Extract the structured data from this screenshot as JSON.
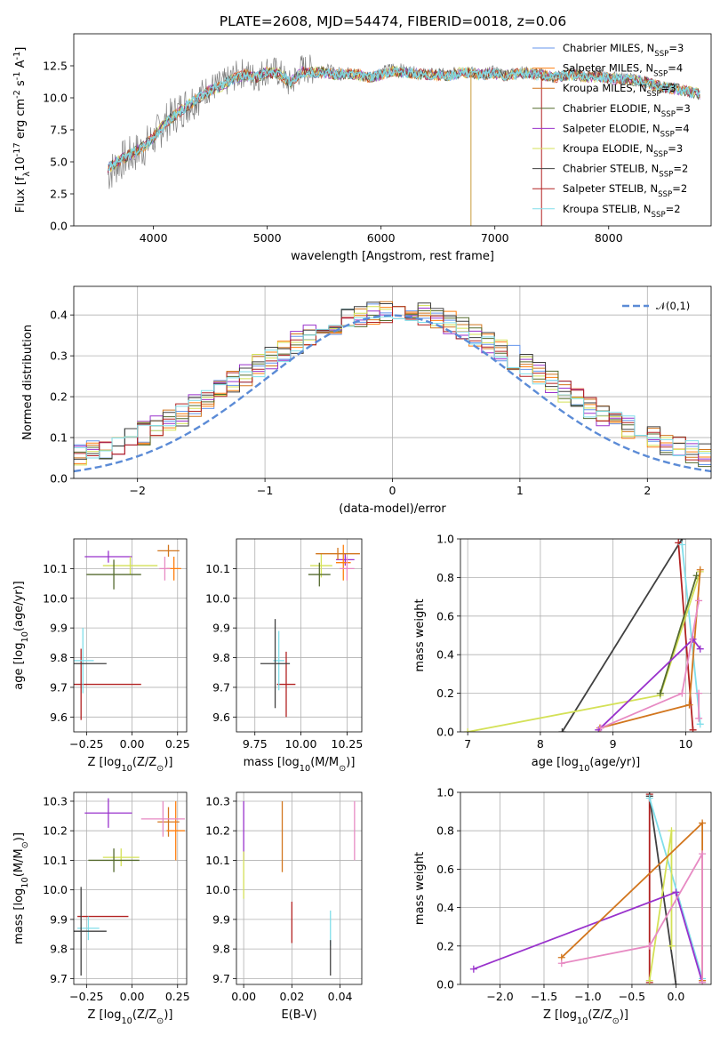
{
  "chart_data": [
    {
      "id": "spectrum",
      "type": "line",
      "title": "PLATE=2608, MJD=54474, FIBERID=0018, z=0.06",
      "xlabel": "wavelength [Angstrom, rest frame]",
      "ylabel": "Flux [f$_λ$10$^{-17}$ erg cm$^{-2}$ s$^{-1}$ A$^{-1}$]",
      "xlim": [
        3300,
        8900
      ],
      "ylim": [
        0,
        15
      ],
      "xticks": [
        "4000",
        "5000",
        "6000",
        "7000",
        "8000"
      ],
      "yticks": [
        "0.0",
        "2.5",
        "5.0",
        "7.5",
        "10.0",
        "12.5"
      ],
      "grid": false,
      "legend_position": "top-right",
      "data_series": {
        "name": "data",
        "color": "#808080",
        "x": [
          3600,
          3700,
          3800,
          3900,
          4000,
          4100,
          4200,
          4300,
          4400,
          4500,
          4600,
          4700,
          4800,
          4900,
          5000,
          5100,
          5200,
          5300,
          5400,
          5500,
          5600,
          5700,
          5800,
          5900,
          6000,
          6100,
          6200,
          6300,
          6400,
          6500,
          6600,
          6700,
          6800,
          6900,
          7000,
          7100,
          7200,
          7300,
          7400,
          7500,
          7600,
          7700,
          7800,
          7900,
          8000,
          8100,
          8200,
          8300,
          8400,
          8500,
          8600,
          8700,
          8800
        ],
        "y": [
          4.0,
          5.0,
          5.5,
          6.0,
          6.8,
          8.0,
          8.8,
          9.5,
          10.2,
          10.8,
          11.0,
          11.6,
          12.0,
          11.5,
          12.2,
          12.0,
          11.0,
          12.3,
          12.2,
          12.3,
          12.0,
          12.0,
          11.9,
          11.5,
          12.0,
          12.4,
          12.2,
          12.0,
          11.9,
          11.9,
          11.8,
          12.2,
          12.0,
          11.9,
          12.1,
          11.8,
          12.1,
          12.0,
          11.9,
          11.6,
          11.8,
          12.0,
          11.7,
          11.9,
          11.6,
          11.6,
          11.5,
          11.4,
          11.0,
          10.8,
          10.7,
          10.5,
          10.3
        ]
      },
      "models": {
        "x": [
          3600,
          3700,
          3800,
          3900,
          4000,
          4100,
          4200,
          4300,
          4400,
          4500,
          4600,
          4700,
          4800,
          4900,
          5000,
          5100,
          5200,
          5300,
          5400,
          5500,
          5600,
          5700,
          5800,
          5900,
          6000,
          6100,
          6200,
          6300,
          6400,
          6500,
          6600,
          6700,
          6800,
          6900,
          7000,
          7100,
          7200,
          7300,
          7400,
          7500,
          7600,
          7700,
          7800,
          7900,
          8000,
          8100,
          8200,
          8300,
          8400,
          8500,
          8600,
          8700,
          8800
        ],
        "y": [
          4.5,
          5.1,
          5.6,
          6.1,
          6.9,
          8.0,
          8.7,
          9.4,
          10.0,
          10.6,
          10.9,
          11.5,
          11.8,
          11.6,
          12.0,
          11.9,
          11.2,
          12.0,
          12.0,
          12.0,
          11.8,
          11.9,
          11.8,
          11.6,
          11.8,
          12.1,
          12.0,
          11.9,
          11.8,
          11.8,
          11.7,
          12.0,
          11.9,
          11.8,
          11.9,
          11.7,
          11.9,
          11.9,
          11.8,
          11.6,
          11.7,
          11.8,
          11.6,
          11.7,
          11.5,
          11.5,
          11.4,
          11.3,
          11.0,
          10.8,
          10.7,
          10.5,
          10.3
        ]
      },
      "series": [
        {
          "name": "Chabrier MILES, N$_{SSP}$=3",
          "color": "#6495ed"
        },
        {
          "name": "Salpeter MILES, N$_{SSP}$=4",
          "color": "#ff7f0e"
        },
        {
          "name": "Kroupa MILES, N$_{SSP}$=3",
          "color": "#d2761e"
        },
        {
          "name": "Chabrier ELODIE, N$_{SSP}$=3",
          "color": "#556b2f"
        },
        {
          "name": "Salpeter ELODIE, N$_{SSP}$=4",
          "color": "#9932cc"
        },
        {
          "name": "Kroupa ELODIE, N$_{SSP}$=3",
          "color": "#d4e157"
        },
        {
          "name": "Chabrier STELIB, N$_{SSP}$=2",
          "color": "#404040"
        },
        {
          "name": "Salpeter STELIB, N$_{SSP}$=2",
          "color": "#b22222"
        },
        {
          "name": "Kroupa STELIB, N$_{SSP}$=2",
          "color": "#80deea"
        }
      ],
      "cyan_overlay_color": "#80d8e0"
    },
    {
      "id": "residuals",
      "type": "line",
      "xlabel": "(data-model)/error",
      "ylabel": "Normed distribution",
      "xlim": [
        -2.5,
        2.5
      ],
      "ylim": [
        0,
        0.47
      ],
      "xticks": [
        "−2",
        "−1",
        "0",
        "1",
        "2"
      ],
      "yticks": [
        "0.0",
        "0.1",
        "0.2",
        "0.3",
        "0.4"
      ],
      "grid": true,
      "legend_position": "top-right",
      "legend_label": "$\\mathcal{N}(0,1)$",
      "normal_color": "#5b8bd6",
      "hist_colors": [
        "#6495ed",
        "#ff7f0e",
        "#d2761e",
        "#556b2f",
        "#9932cc",
        "#d4e157",
        "#404040",
        "#b22222",
        "#80deea"
      ],
      "bin_edges_count": 50
    },
    {
      "id": "age_vs_Z",
      "type": "scatter",
      "xlabel": "Z [log$_{10}$(Z/Z$_\\odot$)]",
      "ylabel": "age  [log$_{10}$(age/yr)]",
      "xlim": [
        -0.32,
        0.3
      ],
      "ylim": [
        9.55,
        10.2
      ],
      "xticks": [
        "−0.25",
        "0.00",
        "0.25"
      ],
      "yticks": [
        "9.6",
        "9.7",
        "9.8",
        "9.9",
        "10.0",
        "10.1"
      ],
      "grid": true,
      "points": [
        {
          "x": -0.13,
          "y": 10.14,
          "xerr": 0.13,
          "yerr": 0.02,
          "color": "#9932cc"
        },
        {
          "x": -0.01,
          "y": 10.11,
          "xerr": 0.15,
          "yerr": 0.03,
          "color": "#d4e157"
        },
        {
          "x": 0.23,
          "y": 10.1,
          "xerr": 0.04,
          "yerr": 0.04,
          "color": "#ff7f0e"
        },
        {
          "x": 0.18,
          "y": 10.1,
          "xerr": 0.03,
          "yerr": 0.04,
          "color": "#e78ac3"
        },
        {
          "x": 0.2,
          "y": 10.16,
          "xerr": 0.06,
          "yerr": 0.02,
          "color": "#d2761e"
        },
        {
          "x": -0.1,
          "y": 10.08,
          "xerr": 0.15,
          "yerr": 0.05,
          "color": "#556b2f"
        },
        {
          "x": -0.28,
          "y": 9.71,
          "xerr": 0.33,
          "yerr": 0.12,
          "color": "#b22222"
        },
        {
          "x": -0.27,
          "y": 9.79,
          "xerr": 0.06,
          "yerr": 0.11,
          "color": "#80deea"
        },
        {
          "x": -0.28,
          "y": 9.78,
          "xerr": 0.14,
          "yerr": 0.0,
          "color": "#404040"
        }
      ]
    },
    {
      "id": "age_vs_mass",
      "type": "scatter",
      "xlabel": "mass [log$_{10}$(M/M$_\\odot$)]",
      "ylabel": "",
      "xlim": [
        9.65,
        10.33
      ],
      "ylim": [
        9.55,
        10.2
      ],
      "xticks": [
        "9.75",
        "10.00",
        "10.25"
      ],
      "yticks": [
        "9.6",
        "9.7",
        "9.8",
        "9.9",
        "10.0",
        "10.1"
      ],
      "grid": true,
      "points": [
        {
          "x": 10.24,
          "y": 10.13,
          "xerr": 0.05,
          "yerr": 0.02,
          "color": "#9932cc"
        },
        {
          "x": 10.11,
          "y": 10.11,
          "xerr": 0.06,
          "yerr": 0.04,
          "color": "#d4e157"
        },
        {
          "x": 10.23,
          "y": 10.12,
          "xerr": 0.04,
          "yerr": 0.06,
          "color": "#ff7f0e"
        },
        {
          "x": 10.2,
          "y": 10.15,
          "xerr": 0.12,
          "yerr": 0.02,
          "color": "#d2761e"
        },
        {
          "x": 10.25,
          "y": 10.1,
          "xerr": 0.04,
          "yerr": 0.04,
          "color": "#e78ac3"
        },
        {
          "x": 10.1,
          "y": 10.08,
          "xerr": 0.06,
          "yerr": 0.04,
          "color": "#556b2f"
        },
        {
          "x": 9.92,
          "y": 9.71,
          "xerr": 0.05,
          "yerr": 0.11,
          "color": "#b22222"
        },
        {
          "x": 9.88,
          "y": 9.79,
          "xerr": 0.03,
          "yerr": 0.1,
          "color": "#80deea"
        },
        {
          "x": 9.86,
          "y": 9.78,
          "xerr": 0.08,
          "yerr": 0.15,
          "color": "#404040"
        }
      ]
    },
    {
      "id": "weight_vs_age",
      "type": "line",
      "xlabel": "age  [log$_{10}$(age/yr)]",
      "ylabel": "mass weight",
      "xlim": [
        6.9,
        10.35
      ],
      "ylim": [
        0,
        1.0
      ],
      "xticks": [
        "7",
        "8",
        "9",
        "10"
      ],
      "yticks": [
        "0.0",
        "0.2",
        "0.4",
        "0.6",
        "0.8",
        "1.0"
      ],
      "grid": true,
      "series": [
        {
          "color": "#404040",
          "x": [
            8.3,
            9.95
          ],
          "y": [
            0.0,
            1.0
          ]
        },
        {
          "color": "#b22222",
          "x": [
            9.9,
            10.1
          ],
          "y": [
            0.98,
            0.01
          ]
        },
        {
          "color": "#80deea",
          "x": [
            9.95,
            10.2
          ],
          "y": [
            0.97,
            0.04
          ]
        },
        {
          "color": "#d4e157",
          "x": [
            7.0,
            9.65,
            10.2
          ],
          "y": [
            0.0,
            0.19,
            0.83
          ]
        },
        {
          "color": "#556b2f",
          "x": [
            9.65,
            10.15
          ],
          "y": [
            0.2,
            0.81
          ]
        },
        {
          "color": "#d2761e",
          "x": [
            8.82,
            10.05,
            10.2
          ],
          "y": [
            0.02,
            0.14,
            0.84
          ]
        },
        {
          "color": "#9932cc",
          "x": [
            8.8,
            10.1,
            10.2
          ],
          "y": [
            0.01,
            0.48,
            0.43
          ]
        },
        {
          "color": "#e78ac3",
          "x": [
            8.83,
            9.95,
            10.18
          ],
          "y": [
            0.02,
            0.2,
            0.68
          ]
        },
        {
          "color": "#e78ac3",
          "x": [
            10.18,
            10.18
          ],
          "y": [
            0.07,
            0.2
          ]
        }
      ]
    },
    {
      "id": "mass_vs_Z",
      "type": "scatter",
      "xlabel": "Z [log$_{10}$(Z/Z$_\\odot$)]",
      "ylabel": "mass [log$_{10}$(M/M$_\\odot$)]",
      "xlim": [
        -0.32,
        0.3
      ],
      "ylim": [
        9.68,
        10.33
      ],
      "xticks": [
        "−0.25",
        "0.00",
        "0.25"
      ],
      "yticks": [
        "9.7",
        "9.8",
        "9.9",
        "10.0",
        "10.1",
        "10.2",
        "10.3"
      ],
      "grid": true,
      "points": [
        {
          "x": -0.13,
          "y": 10.26,
          "xerr": 0.13,
          "yerr": 0.05,
          "color": "#9932cc"
        },
        {
          "x": -0.06,
          "y": 10.11,
          "xerr": 0.1,
          "yerr": 0.03,
          "color": "#d4e157"
        },
        {
          "x": 0.2,
          "y": 10.23,
          "xerr": 0.06,
          "yerr": 0.05,
          "color": "#d2761e"
        },
        {
          "x": 0.24,
          "y": 10.2,
          "xerr": 0.05,
          "yerr": 0.1,
          "color": "#ff7f0e"
        },
        {
          "x": 0.17,
          "y": 10.24,
          "xerr": 0.12,
          "yerr": 0.06,
          "color": "#e78ac3"
        },
        {
          "x": -0.1,
          "y": 10.1,
          "xerr": 0.14,
          "yerr": 0.04,
          "color": "#556b2f"
        },
        {
          "x": -0.16,
          "y": 9.91,
          "xerr": 0.14,
          "yerr": 0.0,
          "color": "#b22222"
        },
        {
          "x": -0.24,
          "y": 9.87,
          "xerr": 0.06,
          "yerr": 0.04,
          "color": "#80deea"
        },
        {
          "x": -0.28,
          "y": 9.86,
          "xerr": 0.14,
          "yerr": 0.15,
          "color": "#404040"
        }
      ]
    },
    {
      "id": "mass_vs_ebv",
      "type": "scatter",
      "xlabel": "E(B-V)",
      "ylabel": "",
      "xlim": [
        -0.003,
        0.049
      ],
      "ylim": [
        9.68,
        10.33
      ],
      "xticks": [
        "0.00",
        "0.02",
        "0.04"
      ],
      "yticks": [
        "9.7",
        "9.8",
        "9.9",
        "10.0",
        "10.1",
        "10.2",
        "10.3"
      ],
      "grid": true,
      "points": [
        {
          "x": 0.0,
          "y": 10.2,
          "xerr": 0.0,
          "yerr": 0.1,
          "color": "#9932cc"
        },
        {
          "x": 0.0,
          "y": 10.05,
          "xerr": 0.0,
          "yerr": 0.08,
          "color": "#d4e157"
        },
        {
          "x": 0.016,
          "y": 10.18,
          "xerr": 0.0,
          "yerr": 0.12,
          "color": "#d2761e"
        },
        {
          "x": 0.046,
          "y": 10.2,
          "xerr": 0.0,
          "yerr": 0.1,
          "color": "#e78ac3"
        },
        {
          "x": 0.02,
          "y": 9.89,
          "xerr": 0.0,
          "yerr": 0.07,
          "color": "#b22222"
        },
        {
          "x": 0.036,
          "y": 9.87,
          "xerr": 0.0,
          "yerr": 0.06,
          "color": "#80deea"
        },
        {
          "x": 0.036,
          "y": 9.77,
          "xerr": 0.0,
          "yerr": 0.06,
          "color": "#404040"
        }
      ]
    },
    {
      "id": "weight_vs_Z",
      "type": "line",
      "xlabel": "Z [log$_{10}$(Z/Z$_\\odot$)]",
      "ylabel": "mass weight",
      "xlim": [
        -2.45,
        0.4
      ],
      "ylim": [
        0,
        1.0
      ],
      "xticks": [
        "−2.0",
        "−1.5",
        "−1.0",
        "−0.5",
        "0.0"
      ],
      "yticks": [
        "0.0",
        "0.2",
        "0.4",
        "0.6",
        "0.8",
        "1.0"
      ],
      "grid": true,
      "series": [
        {
          "color": "#b22222",
          "x": [
            -0.3,
            -0.3
          ],
          "y": [
            0.99,
            0.01
          ]
        },
        {
          "color": "#404040",
          "x": [
            -0.3,
            0.0
          ],
          "y": [
            0.98,
            0.0
          ]
        },
        {
          "color": "#80deea",
          "x": [
            -0.3,
            0.3
          ],
          "y": [
            0.97,
            0.03
          ]
        },
        {
          "color": "#d4e157",
          "x": [
            -0.3,
            -0.05,
            -0.05
          ],
          "y": [
            0.02,
            0.8,
            0.2
          ]
        },
        {
          "color": "#9932cc",
          "x": [
            -2.3,
            0.0,
            0.3
          ],
          "y": [
            0.08,
            0.48,
            0.01
          ]
        },
        {
          "color": "#d2761e",
          "x": [
            -1.3,
            0.3,
            0.3
          ],
          "y": [
            0.14,
            0.84,
            0.02
          ]
        },
        {
          "color": "#e78ac3",
          "x": [
            -1.3,
            -0.3,
            0.3,
            0.3
          ],
          "y": [
            0.11,
            0.2,
            0.68,
            0.01
          ]
        }
      ]
    }
  ]
}
